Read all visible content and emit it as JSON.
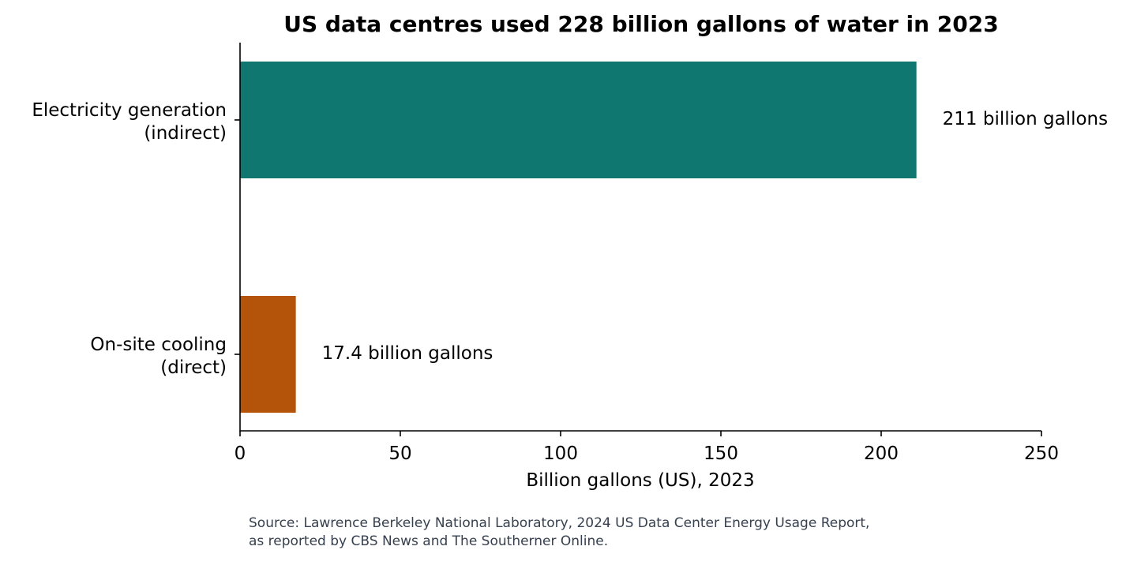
{
  "chart_data": {
    "type": "bar",
    "orientation": "horizontal",
    "title": "US data centres used 228 billion gallons of water in 2023",
    "xlabel": "Billion gallons (US), 2023",
    "ylabel": "",
    "xlim": [
      0,
      250
    ],
    "xticks": [
      "0",
      "50",
      "100",
      "150",
      "200",
      "250"
    ],
    "grid": false,
    "categories": [
      {
        "lines": [
          "Electricity generation",
          "(indirect)"
        ]
      },
      {
        "lines": [
          "On-site cooling",
          "(direct)"
        ]
      }
    ],
    "values": [
      211,
      17.4
    ],
    "data_labels": [
      "211 billion gallons",
      "17.4 billion gallons"
    ],
    "colors": [
      "#107770",
      "#b4530a"
    ]
  },
  "source": {
    "line1": "Source: Lawrence Berkeley National Laboratory, 2024 US Data Center Energy Usage Report,",
    "line2": "as reported by CBS News and The Southerner Online."
  }
}
